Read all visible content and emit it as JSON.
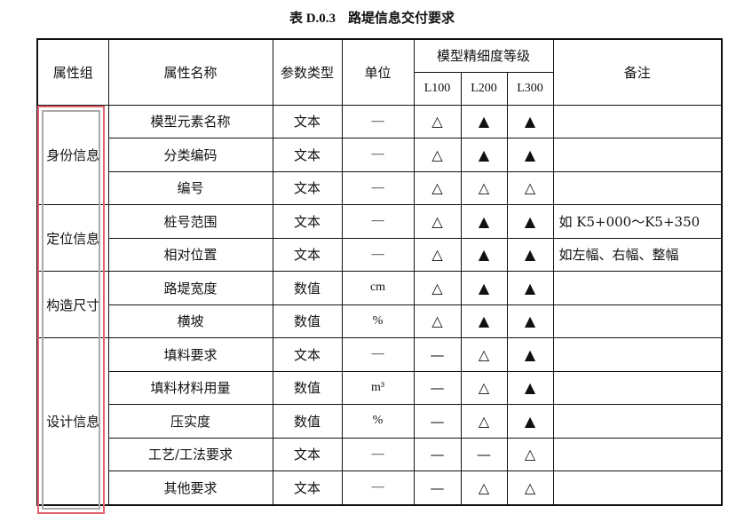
{
  "title": {
    "number": "表 D.0.3",
    "text": "路堤信息交付要求"
  },
  "headers": {
    "group": "属性组",
    "name": "属性名称",
    "type": "参数类型",
    "unit": "单位",
    "level": "模型精细度等级",
    "levels": [
      "L100",
      "L200",
      "L300"
    ],
    "note": "备注"
  },
  "groups": [
    {
      "label": "身份信息",
      "rows": [
        {
          "name": "模型元素名称",
          "type": "文本",
          "unit": "—",
          "l": [
            "△",
            "▲",
            "▲"
          ],
          "note": ""
        },
        {
          "name": "分类编码",
          "type": "文本",
          "unit": "—",
          "l": [
            "△",
            "▲",
            "▲"
          ],
          "note": ""
        },
        {
          "name": "编号",
          "type": "文本",
          "unit": "—",
          "l": [
            "△",
            "△",
            "△"
          ],
          "note": ""
        }
      ]
    },
    {
      "label": "定位信息",
      "rows": [
        {
          "name": "桩号范围",
          "type": "文本",
          "unit": "—",
          "l": [
            "△",
            "▲",
            "▲"
          ],
          "note": "如 K5+000～K5+350"
        },
        {
          "name": "相对位置",
          "type": "文本",
          "unit": "—",
          "l": [
            "△",
            "▲",
            "▲"
          ],
          "note": "如左幅、右幅、整幅"
        }
      ]
    },
    {
      "label": "构造尺寸",
      "rows": [
        {
          "name": "路堤宽度",
          "type": "数值",
          "unit": "cm",
          "l": [
            "△",
            "▲",
            "▲"
          ],
          "note": ""
        },
        {
          "name": "横坡",
          "type": "数值",
          "unit": "%",
          "l": [
            "△",
            "▲",
            "▲"
          ],
          "note": ""
        }
      ]
    },
    {
      "label": "设计信息",
      "rows": [
        {
          "name": "填料要求",
          "type": "文本",
          "unit": "—",
          "l": [
            "—",
            "△",
            "▲"
          ],
          "note": ""
        },
        {
          "name": "填料材料用量",
          "type": "数值",
          "unit": "m³",
          "l": [
            "—",
            "△",
            "▲"
          ],
          "note": ""
        },
        {
          "name": "压实度",
          "type": "数值",
          "unit": "%",
          "l": [
            "—",
            "△",
            "▲"
          ],
          "note": ""
        },
        {
          "name": "工艺/工法要求",
          "type": "文本",
          "unit": "—",
          "l": [
            "—",
            "—",
            "△"
          ],
          "note": ""
        },
        {
          "name": "其他要求",
          "type": "文本",
          "unit": "—",
          "l": [
            "—",
            "△",
            "△"
          ],
          "note": ""
        }
      ]
    }
  ],
  "selection_color": "#e06070"
}
